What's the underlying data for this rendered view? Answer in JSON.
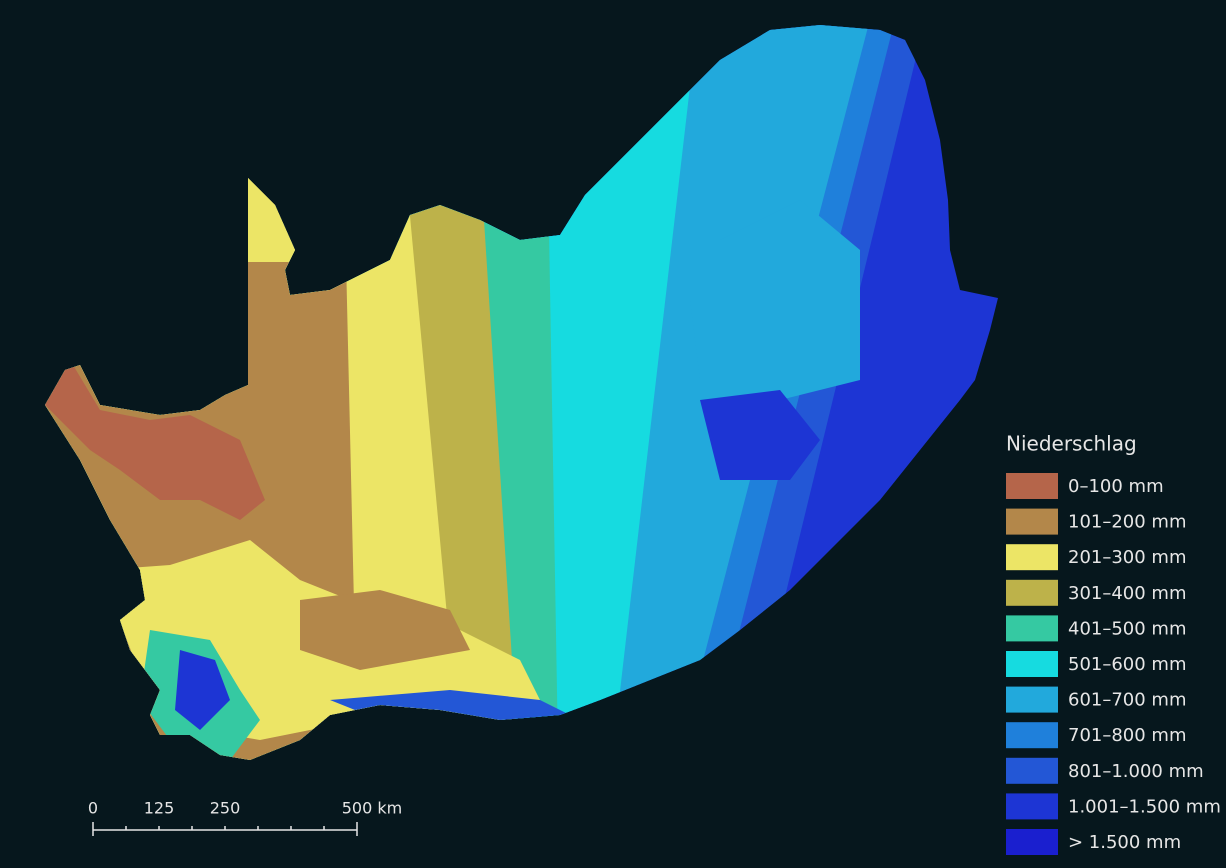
{
  "legend": {
    "title": "Niederschlag",
    "items": [
      {
        "label": "0–100 mm",
        "color": "#b5654a"
      },
      {
        "label": "101–200 mm",
        "color": "#b3874a"
      },
      {
        "label": "201–300 mm",
        "color": "#ece566"
      },
      {
        "label": "301–400 mm",
        "color": "#bdb24a"
      },
      {
        "label": "401–500 mm",
        "color": "#35c9a2"
      },
      {
        "label": "501–600 mm",
        "color": "#16dbe0"
      },
      {
        "label": "601–700 mm",
        "color": "#22a9dc"
      },
      {
        "label": "701–800 mm",
        "color": "#1f80db"
      },
      {
        "label": "801–1.000 mm",
        "color": "#2357d6"
      },
      {
        "label": "1.001–1.500 mm",
        "color": "#1d35d4"
      },
      {
        "label": "> 1.500 mm",
        "color": "#1a1fcf"
      }
    ]
  },
  "scale_bar": {
    "labels": [
      "0",
      "125",
      "250",
      "500 km"
    ]
  }
}
